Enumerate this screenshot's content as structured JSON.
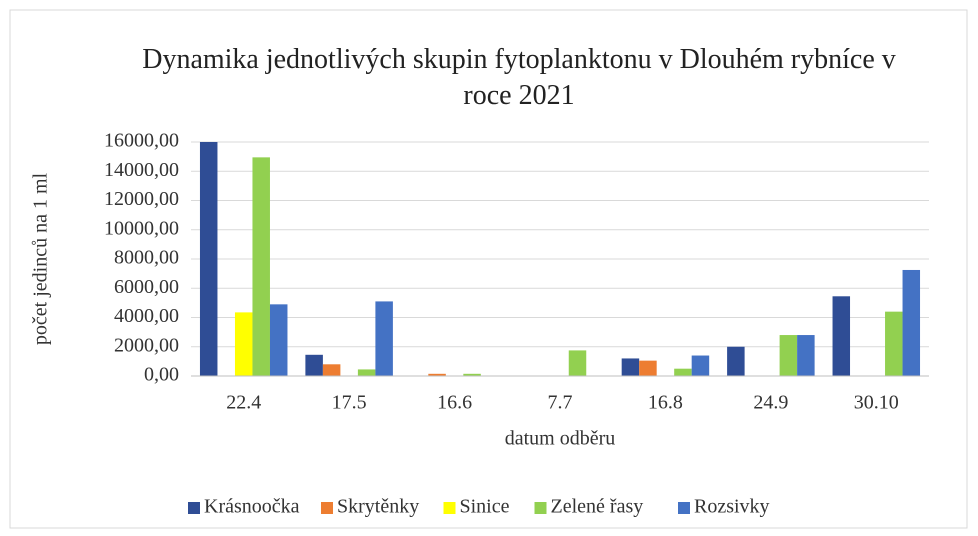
{
  "chart_data": {
    "type": "bar",
    "title": "Dynamika jednotlivých skupin fytoplanktonu v Dlouhém rybníce v roce 2021",
    "x_label": "datum odběru",
    "y_label": "počet jedinců na 1 ml",
    "categories": [
      "22.4",
      "17.5",
      "16.6",
      "7.7",
      "16.8",
      "24.9",
      "30.10"
    ],
    "series": [
      {
        "name": "Krásnoočka",
        "color": "#2f4d95",
        "values": [
          16000,
          1450,
          0,
          0,
          1200,
          2000,
          5450
        ]
      },
      {
        "name": "Skrytěnky",
        "color": "#ed7d31",
        "values": [
          0,
          800,
          150,
          0,
          1050,
          0,
          0
        ]
      },
      {
        "name": "Sinice",
        "color": "#ffff00",
        "values": [
          4350,
          0,
          0,
          0,
          0,
          0,
          0
        ]
      },
      {
        "name": "Zelené řasy",
        "color": "#92d050",
        "values": [
          14950,
          450,
          150,
          1750,
          500,
          2800,
          4400
        ]
      },
      {
        "name": "Rozsivky",
        "color": "#4472c4",
        "values": [
          4900,
          5100,
          0,
          0,
          1400,
          2800,
          7250
        ]
      }
    ],
    "ylim": [
      0,
      16000
    ],
    "yticks": [
      {
        "value": 0,
        "label": "0,00"
      },
      {
        "value": 2000,
        "label": "2000,00"
      },
      {
        "value": 4000,
        "label": "4000,00"
      },
      {
        "value": 6000,
        "label": "6000,00"
      },
      {
        "value": 8000,
        "label": "8000,00"
      },
      {
        "value": 10000,
        "label": "10000,00"
      },
      {
        "value": 12000,
        "label": "12000,00"
      },
      {
        "value": 14000,
        "label": "14000,00"
      },
      {
        "value": 16000,
        "label": "16000,00"
      }
    ],
    "grid": true,
    "legend": "bottom"
  }
}
